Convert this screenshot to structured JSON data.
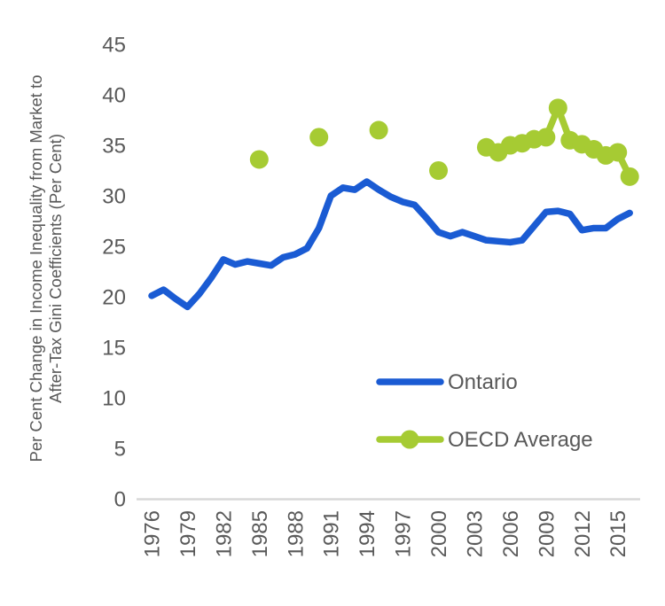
{
  "chart_data": {
    "type": "line",
    "title": "",
    "xlabel": "",
    "ylabel": "Per Cent Change in Income Inequality from Market to After-Tax Gini Coefficients (Per Cent)",
    "ylabel_line1": "Per Cent Change in Income Inequality from Market to",
    "ylabel_line2": "After-Tax Gini Coefficients (Per Cent)",
    "ylim": [
      0,
      45
    ],
    "xlim": [
      1976,
      2016
    ],
    "grid": false,
    "legend_position": "inside lower right",
    "y_ticks": [
      0,
      5,
      10,
      15,
      20,
      25,
      30,
      35,
      40,
      45
    ],
    "x_tick_years": [
      1976,
      1979,
      1982,
      1985,
      1988,
      1991,
      1994,
      1997,
      2000,
      2003,
      2006,
      2009,
      2012,
      2015
    ],
    "colors": {
      "axis_line": "#D8D8D8",
      "text": "#595959",
      "ontario_blue": "#1A5BD3",
      "oecd_green": "#A6CB33"
    },
    "legend": [
      {
        "label": "Ontario",
        "color": "#1A5BD3"
      },
      {
        "label": "OECD Average",
        "color": "#A6CB33"
      }
    ],
    "series": [
      {
        "name": "Ontario",
        "style": "line",
        "color": "#1A5BD3",
        "x": [
          1976,
          1977,
          1978,
          1979,
          1980,
          1981,
          1982,
          1983,
          1984,
          1985,
          1986,
          1987,
          1988,
          1989,
          1990,
          1991,
          1992,
          1993,
          1994,
          1995,
          1996,
          1997,
          1998,
          1999,
          2000,
          2001,
          2002,
          2003,
          2004,
          2005,
          2006,
          2007,
          2008,
          2009,
          2010,
          2011,
          2012,
          2013,
          2014,
          2015,
          2016
        ],
        "values": [
          20.1,
          20.7,
          19.8,
          19.0,
          20.3,
          21.9,
          23.7,
          23.2,
          23.5,
          23.3,
          23.1,
          23.9,
          24.2,
          24.8,
          26.8,
          30.0,
          30.8,
          30.6,
          31.4,
          30.6,
          29.9,
          29.4,
          29.1,
          27.8,
          26.4,
          26.0,
          26.4,
          26.0,
          25.6,
          25.5,
          25.4,
          25.6,
          27.0,
          28.4,
          28.5,
          28.2,
          26.6,
          26.8,
          26.8,
          27.7,
          28.3
        ]
      },
      {
        "name": "OECD Average (selected years)",
        "style": "scatter",
        "color": "#A6CB33",
        "x": [
          1985,
          1990,
          1995,
          2000
        ],
        "values": [
          33.6,
          35.8,
          36.5,
          32.5
        ]
      },
      {
        "name": "OECD Average (annual)",
        "style": "line+markers",
        "color": "#A6CB33",
        "x": [
          2004,
          2005,
          2006,
          2007,
          2008,
          2009,
          2010,
          2011,
          2012,
          2013,
          2014,
          2015,
          2016
        ],
        "values": [
          34.8,
          34.3,
          35.0,
          35.2,
          35.6,
          35.8,
          38.7,
          35.5,
          35.1,
          34.6,
          34.0,
          34.3,
          31.9
        ]
      }
    ]
  }
}
